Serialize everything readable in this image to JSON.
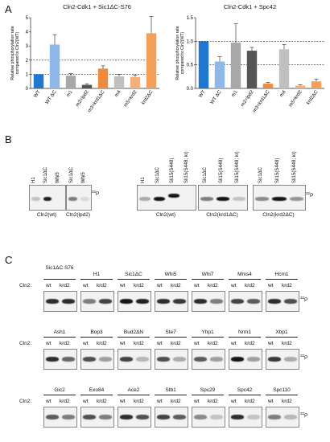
{
  "panels": {
    "A": "A",
    "B": "B",
    "C": "C"
  },
  "chart_data": [
    {
      "type": "bar",
      "title": "Cln2-Cdk1 + Sic1ΔC-S76",
      "ylabel": "Relative phosphorylation rate compared to Cln2(WT)",
      "categories": [
        "WT",
        "WT ΔC",
        "m1",
        "m2=lpd2",
        "m3=krd1ΔC",
        "m4",
        "m5=krd2",
        "krd2ΔC"
      ],
      "values": [
        1.0,
        3.1,
        0.9,
        0.25,
        1.4,
        0.85,
        0.8,
        3.9
      ],
      "errors": [
        0,
        0.7,
        0.15,
        0.08,
        0.2,
        0.15,
        0.15,
        1.2
      ],
      "colors": [
        "#1f77d0",
        "#8fb8e8",
        "#a8a8a8",
        "#555555",
        "#f08a3c",
        "#c0c0c0",
        "#f5b07a",
        "#f5a05a"
      ],
      "ylim": [
        0,
        5
      ],
      "yticks": [
        0,
        1,
        2,
        3,
        4,
        5
      ],
      "reference_lines": [
        1,
        2
      ]
    },
    {
      "type": "bar",
      "title": "Cln2-Cdk1 + Spc42",
      "ylabel": "Relative phosphorylation rate compared to Cln2(WT)",
      "categories": [
        "WT",
        "WT ΔC",
        "m1",
        "m2=lpd2",
        "m3=krd1ΔC",
        "m4",
        "m5=krd2",
        "krd2ΔC"
      ],
      "values": [
        1.0,
        0.57,
        0.97,
        0.8,
        0.1,
        0.83,
        0.06,
        0.15
      ],
      "errors": [
        0,
        0.1,
        0.4,
        0.07,
        0.03,
        0.1,
        0.02,
        0.05
      ],
      "colors": [
        "#1f77d0",
        "#8fb8e8",
        "#a8a8a8",
        "#555555",
        "#f08a3c",
        "#c0c0c0",
        "#f5b07a",
        "#f5a05a"
      ],
      "ylim": [
        0,
        1.5
      ],
      "yticks": [
        0.0,
        0.5,
        1.0,
        1.5
      ],
      "reference_lines": [
        0.5,
        1.0
      ]
    }
  ],
  "panelB": {
    "isotope": "32P",
    "groups": [
      {
        "lanes": [
          "H1",
          "Sic1ΔC",
          "Whi5"
        ],
        "caption": "Cln2(wt)"
      },
      {
        "lanes": [
          "Sic1ΔC",
          "Whi5"
        ],
        "caption": "Cln2(lpd2)"
      },
      {
        "lanes": [
          "H1",
          "Sic1ΔC",
          "Sli15(S448)",
          "Sli15(S448; kr)"
        ],
        "caption": "Cln2(wt)"
      },
      {
        "lanes": [
          "Sic1ΔC",
          "Sli15(S448)",
          "Sli15(S448; kr)"
        ],
        "caption": "Cln2(krd1ΔC)"
      },
      {
        "lanes": [
          "Sic1ΔC",
          "Sli15(S448)",
          "Sli15(S448; kr)"
        ],
        "caption": "Cln2(krd2ΔC)"
      }
    ]
  },
  "panelC": {
    "row_label": "Cln2:",
    "lane_wt": "wt",
    "lane_krd2": "krd2",
    "isotope": "32P",
    "rows": [
      [
        "Sic1ΔC S76",
        "H1",
        "Sic1ΔC",
        "Whi5",
        "Whi7",
        "Mms4",
        "Hcm1"
      ],
      [
        "Ash1",
        "Bop3",
        "Bud2ΔN",
        "Ste7",
        "Yhp1",
        "Nrm1",
        "Xbp1"
      ],
      [
        "Gic2",
        "Exo84",
        "Ace2",
        "Stb1",
        "Spc29",
        "Spc42",
        "Spc110"
      ]
    ],
    "intensity": [
      [
        [
          0.85,
          0.85
        ],
        [
          0.5,
          0.75
        ],
        [
          0.95,
          0.9
        ],
        [
          0.85,
          0.8
        ],
        [
          0.85,
          0.5
        ],
        [
          0.75,
          0.65
        ],
        [
          0.85,
          0.7
        ]
      ],
      [
        [
          0.85,
          0.6
        ],
        [
          0.7,
          0.35
        ],
        [
          0.75,
          0.25
        ],
        [
          0.7,
          0.3
        ],
        [
          0.65,
          0.35
        ],
        [
          0.95,
          0.35
        ],
        [
          0.8,
          0.3
        ]
      ],
      [
        [
          0.65,
          0.5
        ],
        [
          0.7,
          0.5
        ],
        [
          0.85,
          0.7
        ],
        [
          0.75,
          0.65
        ],
        [
          0.45,
          0.2
        ],
        [
          0.85,
          0.2
        ],
        [
          0.5,
          0.25
        ]
      ]
    ]
  }
}
